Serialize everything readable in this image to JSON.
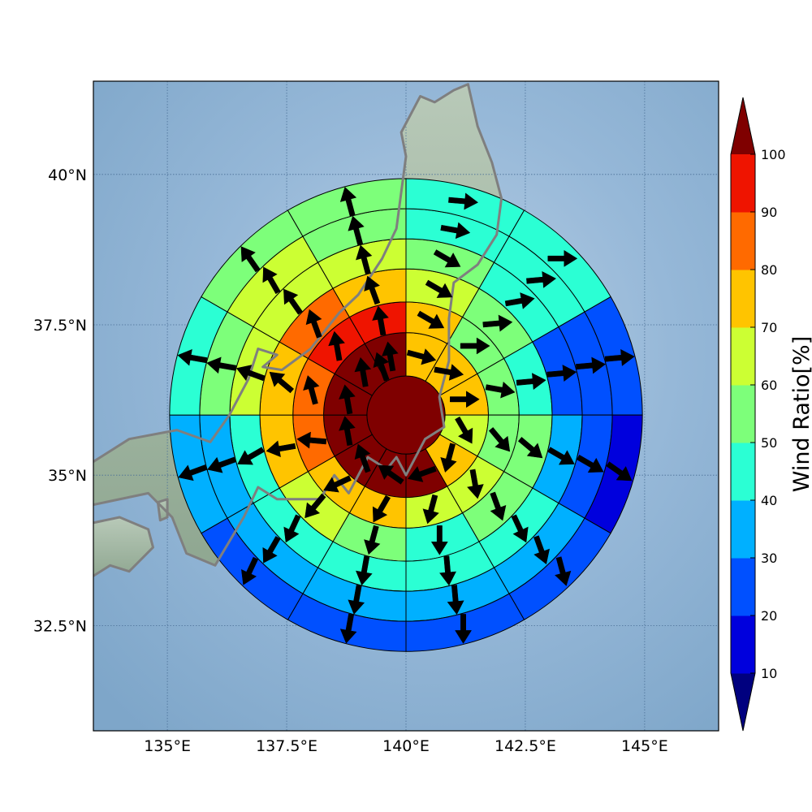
{
  "map": {
    "extent": {
      "lon": [
        133.45,
        146.55
      ],
      "lat": [
        30.75,
        41.55
      ]
    },
    "lon_ticks": [
      135,
      137.5,
      140,
      142.5,
      145
    ],
    "lat_ticks": [
      40,
      37.5,
      35,
      32.5
    ],
    "lon_tick_labels": [
      "135°E",
      "137.5°E",
      "140°E",
      "142.5°E",
      "145°E"
    ],
    "lat_tick_labels": [
      "40°N",
      "37.5°N",
      "35°N",
      "32.5°N"
    ],
    "coastline_color": "#7f7f7f",
    "ocean_color": "#8fb3d4",
    "land_color": "#9fb6a4"
  },
  "chart_data": {
    "type": "polar-sector-map",
    "center": {
      "lon": 140.0,
      "lat": 36.0
    },
    "ring_radii_deg_lat": [
      0.65,
      1.37,
      1.88,
      2.43,
      2.93,
      3.43,
      3.93
    ],
    "sector_count": 12,
    "sector_start_azimuth_deg": 0,
    "sector_direction": "clockwise",
    "ring_values_percent": [
      [
        100
      ],
      [
        70,
        70,
        70,
        60,
        70,
        100,
        100,
        100,
        100,
        100,
        100,
        100
      ],
      [
        70,
        50,
        50,
        50,
        60,
        60,
        70,
        70,
        80,
        80,
        90,
        90
      ],
      [
        60,
        50,
        40,
        50,
        50,
        40,
        50,
        60,
        70,
        70,
        80,
        70
      ],
      [
        50,
        40,
        20,
        30,
        40,
        40,
        40,
        40,
        40,
        60,
        60,
        60
      ],
      [
        40,
        40,
        20,
        20,
        30,
        30,
        30,
        30,
        30,
        50,
        60,
        50
      ],
      [
        40,
        40,
        20,
        10,
        20,
        20,
        20,
        20,
        30,
        40,
        50,
        50
      ]
    ],
    "arrow_direction_deg": [
      [
        340
      ],
      [
        105,
        100,
        90,
        150,
        195,
        250,
        305,
        340,
        350,
        350,
        350,
        350
      ],
      [
        120,
        90,
        100,
        140,
        170,
        195,
        210,
        245,
        275,
        345,
        350,
        350
      ],
      [
        120,
        85,
        85,
        130,
        160,
        180,
        195,
        220,
        260,
        310,
        340,
        340
      ],
      [
        120,
        80,
        85,
        120,
        155,
        175,
        190,
        205,
        240,
        290,
        325,
        345
      ],
      [
        100,
        85,
        85,
        120,
        160,
        175,
        190,
        210,
        250,
        280,
        330,
        345
      ],
      [
        95,
        90,
        85,
        125,
        165,
        180,
        190,
        205,
        250,
        280,
        325,
        345
      ]
    ],
    "colorbar": {
      "label": "Wind Ratio[%]",
      "boundaries": [
        10,
        20,
        30,
        40,
        50,
        60,
        70,
        80,
        90,
        100
      ],
      "tick_labels": [
        "10",
        "20",
        "30",
        "40",
        "50",
        "60",
        "70",
        "80",
        "90",
        "100"
      ],
      "colors": [
        "#0000dd",
        "#0050ff",
        "#00b0ff",
        "#2bffd4",
        "#7dff7a",
        "#ccff33",
        "#ffc400",
        "#ff6a00",
        "#ef1400"
      ],
      "under_color": "#00007f",
      "over_color": "#7f0000",
      "extend": "both"
    }
  }
}
